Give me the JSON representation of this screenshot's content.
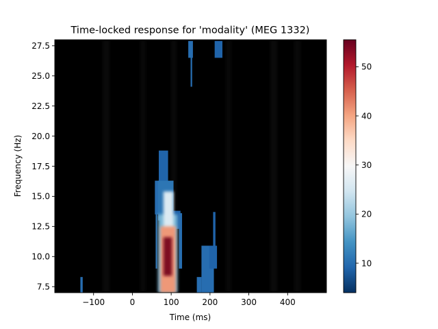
{
  "chart_data": {
    "type": "heatmap",
    "title": "Time-locked response for 'modality' (MEG 1332)",
    "xlabel": "Time (ms)",
    "ylabel": "Frequency (Hz)",
    "xlim": [
      -200,
      500
    ],
    "ylim": [
      7,
      28
    ],
    "x_ticks": [
      -100,
      0,
      100,
      200,
      300,
      400
    ],
    "x_tick_labels": [
      "−100",
      "0",
      "100",
      "200",
      "300",
      "400"
    ],
    "y_ticks": [
      7.5,
      10.0,
      12.5,
      15.0,
      17.5,
      20.0,
      22.5,
      25.0,
      27.5
    ],
    "y_tick_labels": [
      "7.5",
      "10.0",
      "12.5",
      "15.0",
      "17.5",
      "20.0",
      "22.5",
      "25.0",
      "27.5"
    ],
    "colorbar": {
      "colormap": "RdBu_r",
      "range": [
        4,
        55.5
      ],
      "ticks": [
        10,
        20,
        30,
        40,
        50
      ],
      "tick_labels": [
        "10",
        "20",
        "30",
        "40",
        "50"
      ],
      "colors": [
        "#053061",
        "#2166ac",
        "#4393c3",
        "#92c5de",
        "#d1e5f0",
        "#f7f7f7",
        "#fddbc7",
        "#f4a582",
        "#d6604d",
        "#b2182b",
        "#67001f"
      ]
    },
    "masked_background_color": "#000000",
    "significant_clusters": [
      {
        "t": [
          58,
          68
        ],
        "f": [
          13.5,
          16.3
        ],
        "value": 10
      },
      {
        "t": [
          60,
          64
        ],
        "f": [
          9.0,
          13.8
        ],
        "value": 10
      },
      {
        "t": [
          68,
          92
        ],
        "f": [
          16.1,
          18.8
        ],
        "value": 9
      },
      {
        "t": [
          66,
          106
        ],
        "f": [
          13.0,
          16.3
        ],
        "value": 11
      },
      {
        "t": [
          104,
          124
        ],
        "f": [
          12.3,
          13.8
        ],
        "value": 9
      },
      {
        "t": [
          120,
          128
        ],
        "f": [
          9.0,
          13.6
        ],
        "value": 10
      },
      {
        "t": [
          66,
          116
        ],
        "f": [
          7.0,
          13.5
        ],
        "value": 18
      },
      {
        "t": [
          80,
          106
        ],
        "f": [
          12.0,
          15.4
        ],
        "value": 26
      },
      {
        "t": [
          72,
          112
        ],
        "f": [
          7.0,
          12.5
        ],
        "value": 41
      },
      {
        "t": [
          80,
          102
        ],
        "f": [
          8.4,
          11.6
        ],
        "value": 54
      },
      {
        "t": [
          166,
          178
        ],
        "f": [
          7.0,
          8.3
        ],
        "value": 10
      },
      {
        "t": [
          178,
          210
        ],
        "f": [
          7.0,
          10.9
        ],
        "value": 10
      },
      {
        "t": [
          198,
          218
        ],
        "f": [
          9.0,
          10.9
        ],
        "value": 9
      },
      {
        "t": [
          208,
          214
        ],
        "f": [
          10.5,
          13.7
        ],
        "value": 9
      },
      {
        "t": [
          -134,
          -128
        ],
        "f": [
          7.0,
          8.3
        ],
        "value": 10
      },
      {
        "t": [
          144,
          156
        ],
        "f": [
          26.5,
          27.9
        ],
        "value": 10
      },
      {
        "t": [
          150,
          154
        ],
        "f": [
          24.1,
          26.6
        ],
        "value": 10
      },
      {
        "t": [
          212,
          232
        ],
        "f": [
          26.5,
          27.9
        ],
        "value": 9
      }
    ]
  }
}
